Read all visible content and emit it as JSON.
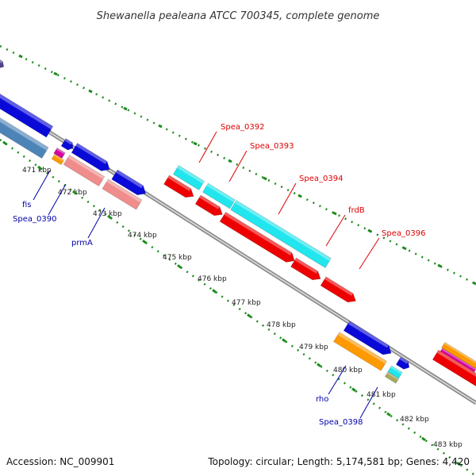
{
  "title": "Shewanella pealeana ATCC 700345, complete genome",
  "footer": {
    "accession": "Accession: NC_009901",
    "summary": "Topology: circular; Length: 5,174,581 bp; Genes: 4,420"
  },
  "colors": {
    "backbone": "#8c8c8c",
    "tick_dots": "#1e8c1e",
    "label_red": "#dd0000",
    "label_blue": "#0000aa",
    "gene_blue": "#0a0ad8",
    "gene_red": "#ee0000",
    "gene_cyan": "#22e6ee",
    "gene_pink": "#f08c8c",
    "gene_orange": "#ff9900",
    "gene_steel": "#4d84b8"
  },
  "ticks": [
    "471 kbp",
    "472 kbp",
    "473 kbp",
    "474 kbp",
    "475 kbp",
    "476 kbp",
    "477 kbp",
    "478 kbp",
    "479 kbp",
    "480 kbp",
    "481 kbp",
    "482 kbp",
    "483 kbp"
  ],
  "labels_red": [
    "Spea_0392",
    "Spea_0393",
    "Spea_0394",
    "frdB",
    "Spea_0396"
  ],
  "labels_blue": [
    "fis",
    "Spea_0390",
    "prmA",
    "rho",
    "Spea_0398"
  ]
}
